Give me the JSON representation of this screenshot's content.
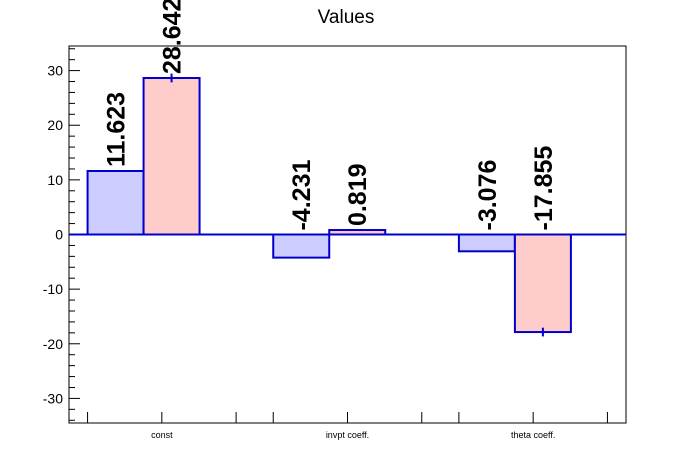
{
  "chart_data": {
    "type": "bar",
    "title": "Values",
    "xlabel": "",
    "ylabel": "",
    "ylim": [
      -34.5,
      34.5
    ],
    "yticks": [
      -30,
      -20,
      -10,
      0,
      10,
      20,
      30
    ],
    "categories": [
      "const",
      "invpt coeff.",
      "theta coeff."
    ],
    "series": [
      {
        "color": "#ccccff",
        "values": [
          11.623,
          -4.231,
          -3.076
        ],
        "errors": [
          0,
          0,
          0
        ]
      },
      {
        "color": "#ffcccc",
        "values": [
          28.642,
          0.819,
          -17.855
        ],
        "errors": [
          0.8,
          0,
          0.8
        ]
      }
    ],
    "value_labels": [
      [
        "11.623",
        "-4.231",
        "-3.076"
      ],
      [
        "28.642",
        "0.819",
        "-17.855"
      ]
    ],
    "edge_color": "#0000cc",
    "grid": false,
    "legend": "none"
  }
}
